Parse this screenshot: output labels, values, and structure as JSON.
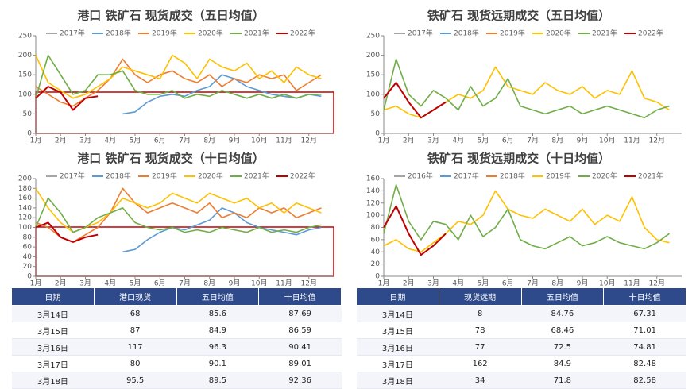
{
  "chart_data": [
    {
      "type": "line",
      "title": "港口 铁矿石 现货成交（五日均值）",
      "x": [
        0,
        1,
        2,
        3,
        4,
        5,
        6,
        7,
        8,
        9,
        10,
        11,
        12,
        13,
        14,
        15,
        16,
        17,
        18,
        19,
        20,
        21,
        22,
        23
      ],
      "xlim": [
        0,
        24
      ],
      "xticks": [
        {
          "value": 0,
          "label": "1月"
        },
        {
          "value": 2,
          "label": "2月"
        },
        {
          "value": 4,
          "label": "3月"
        },
        {
          "value": 6,
          "label": "4月"
        },
        {
          "value": 8,
          "label": "5月"
        },
        {
          "value": 10,
          "label": "6月"
        },
        {
          "value": 12,
          "label": "7月"
        },
        {
          "value": 14,
          "label": "8月"
        },
        {
          "value": 16,
          "label": "9月"
        },
        {
          "value": 18,
          "label": "10月"
        },
        {
          "value": 20,
          "label": "11月"
        },
        {
          "value": 22,
          "label": "12月"
        }
      ],
      "ylim": [
        0,
        250
      ],
      "yticks": [
        0,
        50,
        100,
        150,
        200,
        250
      ],
      "series": [
        {
          "name": "2017年",
          "color": "#a5a5a5",
          "values": [
            null,
            null,
            null,
            null,
            null,
            null,
            null,
            null,
            null,
            null,
            null,
            null,
            null,
            null,
            null,
            null,
            null,
            null,
            null,
            null,
            null,
            null,
            null,
            null
          ]
        },
        {
          "name": "2018年",
          "color": "#5b9bd5",
          "values": [
            null,
            null,
            null,
            null,
            null,
            null,
            null,
            50,
            55,
            80,
            95,
            100,
            95,
            110,
            120,
            150,
            140,
            120,
            110,
            100,
            95,
            90,
            100,
            95
          ]
        },
        {
          "name": "2019年",
          "color": "#ed7d31",
          "values": [
            120,
            100,
            80,
            70,
            90,
            110,
            140,
            190,
            150,
            130,
            150,
            160,
            140,
            130,
            150,
            120,
            140,
            130,
            150,
            140,
            150,
            110,
            130,
            150
          ]
        },
        {
          "name": "2020年",
          "color": "#ffc000",
          "values": [
            200,
            130,
            110,
            90,
            100,
            120,
            140,
            170,
            160,
            150,
            140,
            200,
            180,
            140,
            190,
            170,
            160,
            180,
            140,
            160,
            130,
            170,
            150,
            140
          ]
        },
        {
          "name": "2021年",
          "color": "#70ad47",
          "values": [
            90,
            200,
            150,
            100,
            110,
            150,
            150,
            160,
            110,
            100,
            100,
            110,
            90,
            100,
            95,
            110,
            100,
            90,
            100,
            90,
            100,
            90,
            100,
            100
          ]
        },
        {
          "name": "2022年",
          "color": "#c00000",
          "values": [
            90,
            120,
            105,
            60,
            90,
            95,
            null,
            null,
            null,
            null,
            null,
            null,
            null,
            null,
            null,
            null,
            null,
            null,
            null,
            null,
            null,
            null,
            null,
            null
          ]
        }
      ]
    },
    {
      "type": "line",
      "title": "铁矿石 现货远期成交（五日均值）",
      "x": [
        0,
        1,
        2,
        3,
        4,
        5,
        6,
        7,
        8,
        9,
        10,
        11,
        12,
        13,
        14,
        15,
        16,
        17,
        18,
        19,
        20,
        21,
        22,
        23
      ],
      "xlim": [
        0,
        24
      ],
      "xticks": [
        {
          "value": 0,
          "label": "1月"
        },
        {
          "value": 2,
          "label": "2月"
        },
        {
          "value": 4,
          "label": "3月"
        },
        {
          "value": 6,
          "label": "4月"
        },
        {
          "value": 8,
          "label": "5月"
        },
        {
          "value": 10,
          "label": "6月"
        },
        {
          "value": 12,
          "label": "7月"
        },
        {
          "value": 14,
          "label": "8月"
        },
        {
          "value": 16,
          "label": "9月"
        },
        {
          "value": 18,
          "label": "10月"
        },
        {
          "value": 20,
          "label": "11月"
        },
        {
          "value": 22,
          "label": "12月"
        }
      ],
      "ylim": [
        0,
        250
      ],
      "yticks": [
        0,
        50,
        100,
        150,
        200,
        250
      ],
      "series": [
        {
          "name": "2017年",
          "color": "#a5a5a5",
          "values": [
            null,
            null,
            null,
            null,
            null,
            null,
            null,
            null,
            null,
            null,
            null,
            null,
            null,
            null,
            null,
            null,
            null,
            null,
            null,
            null,
            null,
            null,
            null,
            null
          ]
        },
        {
          "name": "2018年",
          "color": "#5b9bd5",
          "values": [
            null,
            null,
            null,
            null,
            null,
            null,
            null,
            null,
            null,
            null,
            null,
            null,
            null,
            null,
            null,
            null,
            null,
            null,
            null,
            null,
            null,
            null,
            null,
            null
          ]
        },
        {
          "name": "2019年",
          "color": "#ed7d31",
          "values": [
            null,
            null,
            null,
            null,
            null,
            null,
            null,
            null,
            null,
            null,
            null,
            null,
            null,
            null,
            null,
            null,
            null,
            null,
            null,
            null,
            null,
            null,
            null,
            null
          ]
        },
        {
          "name": "2020年",
          "color": "#ffc000",
          "values": [
            60,
            70,
            50,
            40,
            60,
            80,
            100,
            90,
            110,
            170,
            120,
            110,
            100,
            130,
            110,
            100,
            120,
            90,
            110,
            100,
            160,
            90,
            80,
            60
          ]
        },
        {
          "name": "2021年",
          "color": "#70ad47",
          "values": [
            60,
            190,
            100,
            70,
            110,
            90,
            60,
            120,
            70,
            90,
            140,
            70,
            60,
            50,
            60,
            70,
            50,
            60,
            70,
            60,
            50,
            40,
            60,
            70
          ]
        },
        {
          "name": "2022年",
          "color": "#c00000",
          "values": [
            90,
            130,
            80,
            40,
            60,
            80,
            null,
            null,
            null,
            null,
            null,
            null,
            null,
            null,
            null,
            null,
            null,
            null,
            null,
            null,
            null,
            null,
            null,
            null
          ]
        }
      ]
    },
    {
      "type": "line",
      "title": "港口 铁矿石 现货成交（十日均值）",
      "x": [
        0,
        1,
        2,
        3,
        4,
        5,
        6,
        7,
        8,
        9,
        10,
        11,
        12,
        13,
        14,
        15,
        16,
        17,
        18,
        19,
        20,
        21,
        22,
        23
      ],
      "xlim": [
        0,
        24
      ],
      "xticks": [
        {
          "value": 0,
          "label": "1月"
        },
        {
          "value": 2,
          "label": "2月"
        },
        {
          "value": 4,
          "label": "3月"
        },
        {
          "value": 6,
          "label": "4月"
        },
        {
          "value": 8,
          "label": "5月"
        },
        {
          "value": 10,
          "label": "6月"
        },
        {
          "value": 12,
          "label": "7月"
        },
        {
          "value": 14,
          "label": "8月"
        },
        {
          "value": 16,
          "label": "9月"
        },
        {
          "value": 18,
          "label": "10月"
        },
        {
          "value": 20,
          "label": "11月"
        },
        {
          "value": 22,
          "label": "12月"
        }
      ],
      "ylim": [
        0,
        200
      ],
      "yticks": [
        0,
        20,
        40,
        60,
        80,
        100,
        120,
        140,
        160,
        180,
        200
      ],
      "series": [
        {
          "name": "2017年",
          "color": "#a5a5a5",
          "values": [
            null,
            null,
            null,
            null,
            null,
            null,
            null,
            null,
            null,
            null,
            null,
            null,
            null,
            null,
            null,
            null,
            null,
            null,
            null,
            null,
            null,
            null,
            null,
            null
          ]
        },
        {
          "name": "2018年",
          "color": "#5b9bd5",
          "values": [
            null,
            null,
            null,
            null,
            null,
            null,
            null,
            50,
            55,
            75,
            90,
            100,
            95,
            105,
            115,
            140,
            130,
            110,
            100,
            95,
            90,
            85,
            95,
            100
          ]
        },
        {
          "name": "2019年",
          "color": "#ed7d31",
          "values": [
            110,
            100,
            80,
            70,
            85,
            100,
            130,
            180,
            150,
            130,
            140,
            150,
            140,
            130,
            150,
            120,
            130,
            120,
            140,
            130,
            140,
            120,
            130,
            140
          ]
        },
        {
          "name": "2020年",
          "color": "#ffc000",
          "values": [
            180,
            140,
            110,
            90,
            100,
            110,
            130,
            160,
            150,
            140,
            150,
            170,
            160,
            150,
            170,
            160,
            150,
            160,
            140,
            150,
            130,
            150,
            140,
            130
          ]
        },
        {
          "name": "2021年",
          "color": "#70ad47",
          "values": [
            100,
            160,
            130,
            90,
            100,
            120,
            130,
            140,
            110,
            100,
            95,
            100,
            90,
            95,
            90,
            100,
            95,
            90,
            100,
            90,
            95,
            90,
            100,
            105
          ]
        },
        {
          "name": "2022年",
          "color": "#c00000",
          "values": [
            100,
            110,
            80,
            70,
            80,
            85,
            null,
            null,
            null,
            null,
            null,
            null,
            null,
            null,
            null,
            null,
            null,
            null,
            null,
            null,
            null,
            null,
            null,
            null
          ]
        }
      ]
    },
    {
      "type": "line",
      "title": "铁矿石 现货远期成交（十日均值）",
      "x": [
        0,
        1,
        2,
        3,
        4,
        5,
        6,
        7,
        8,
        9,
        10,
        11,
        12,
        13,
        14,
        15,
        16,
        17,
        18,
        19,
        20,
        21,
        22,
        23
      ],
      "xlim": [
        0,
        24
      ],
      "xticks": [
        {
          "value": 0,
          "label": "1月"
        },
        {
          "value": 2,
          "label": "2月"
        },
        {
          "value": 4,
          "label": "3月"
        },
        {
          "value": 6,
          "label": "4月"
        },
        {
          "value": 8,
          "label": "5月"
        },
        {
          "value": 10,
          "label": "6月"
        },
        {
          "value": 12,
          "label": "7月"
        },
        {
          "value": 14,
          "label": "8月"
        },
        {
          "value": 16,
          "label": "9月"
        },
        {
          "value": 18,
          "label": "10月"
        },
        {
          "value": 20,
          "label": "11月"
        },
        {
          "value": 22,
          "label": "12月"
        }
      ],
      "ylim": [
        0,
        160
      ],
      "yticks": [
        0,
        20,
        40,
        60,
        80,
        100,
        120,
        140,
        160
      ],
      "series": [
        {
          "name": "2016年",
          "color": "#a5a5a5",
          "values": [
            null,
            null,
            null,
            null,
            null,
            null,
            null,
            null,
            null,
            null,
            null,
            null,
            null,
            null,
            null,
            null,
            null,
            null,
            null,
            null,
            null,
            null,
            null,
            null
          ]
        },
        {
          "name": "2017年",
          "color": "#5b9bd5",
          "values": [
            null,
            null,
            null,
            null,
            null,
            null,
            null,
            null,
            null,
            null,
            null,
            null,
            null,
            null,
            null,
            null,
            null,
            null,
            null,
            null,
            null,
            null,
            null,
            null
          ]
        },
        {
          "name": "2018年",
          "color": "#ed7d31",
          "values": [
            null,
            null,
            null,
            null,
            null,
            null,
            null,
            null,
            null,
            null,
            null,
            null,
            null,
            null,
            null,
            null,
            null,
            null,
            null,
            null,
            null,
            null,
            null,
            null
          ]
        },
        {
          "name": "2019年",
          "color": "#ffc000",
          "values": [
            50,
            60,
            45,
            40,
            55,
            70,
            90,
            85,
            100,
            140,
            110,
            100,
            95,
            110,
            100,
            90,
            110,
            85,
            100,
            90,
            130,
            80,
            60,
            55
          ]
        },
        {
          "name": "2020年",
          "color": "#70ad47",
          "values": [
            70,
            150,
            90,
            60,
            90,
            85,
            60,
            100,
            65,
            80,
            110,
            60,
            50,
            45,
            55,
            65,
            50,
            55,
            65,
            55,
            50,
            45,
            55,
            70
          ]
        },
        {
          "name": "2021年",
          "color": "#c00000",
          "values": [
            80,
            115,
            70,
            35,
            50,
            70,
            null,
            null,
            null,
            null,
            null,
            null,
            null,
            null,
            null,
            null,
            null,
            null,
            null,
            null,
            null,
            null,
            null,
            null
          ]
        }
      ]
    }
  ],
  "tables": [
    {
      "headers": [
        "日期",
        "港口现货",
        "五日均值",
        "十日均值"
      ],
      "rows": [
        [
          "3月14日",
          68,
          85.6,
          87.69
        ],
        [
          "3月15日",
          87,
          84.9,
          86.59
        ],
        [
          "3月16日",
          117,
          96.3,
          90.41
        ],
        [
          "3月17日",
          80,
          90.1,
          89.01
        ],
        [
          "3月18日",
          95.5,
          89.5,
          92.36
        ]
      ]
    },
    {
      "headers": [
        "日期",
        "现货远期",
        "五日均值",
        "十日均值"
      ],
      "rows": [
        [
          "3月14日",
          8,
          84.76,
          67.31
        ],
        [
          "3月15日",
          78,
          68.46,
          71.01
        ],
        [
          "3月16日",
          77,
          72.5,
          74.81
        ],
        [
          "3月17日",
          162,
          84.9,
          82.48
        ],
        [
          "3月18日",
          34,
          71.8,
          82.58
        ]
      ]
    }
  ]
}
